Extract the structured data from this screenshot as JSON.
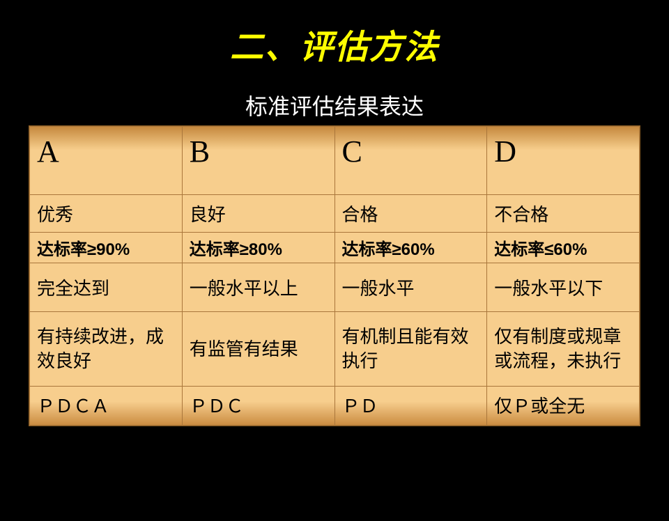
{
  "title": {
    "text": "二、评估方法",
    "color": "#ffff00",
    "fontsize": 48
  },
  "subtitle": {
    "text": "标准评估结果表达",
    "color": "#ffffff",
    "fontsize": 32
  },
  "table": {
    "col_width_pct": [
      25,
      25,
      25,
      25
    ],
    "rows": {
      "head": [
        "A",
        "B",
        "C",
        "D"
      ],
      "rating": [
        "优秀",
        "良好",
        "合格",
        "不合格"
      ],
      "rate": [
        "达标率≥90%",
        "达标率≥80%",
        "达标率≥60%",
        "达标率≤60%"
      ],
      "level": [
        "完全达到",
        "一般水平以上",
        "一般水平",
        "一般水平以下"
      ],
      "desc": [
        "有持续改进，成效良好",
        "有监管有结果",
        "有机制且能有效执行",
        "仅有制度或规章或流程，未执行"
      ],
      "pdca": [
        "ＰＤＣＡ",
        "ＰＤＣ",
        "ＰＤ",
        "仅Ｐ或全无"
      ]
    }
  }
}
